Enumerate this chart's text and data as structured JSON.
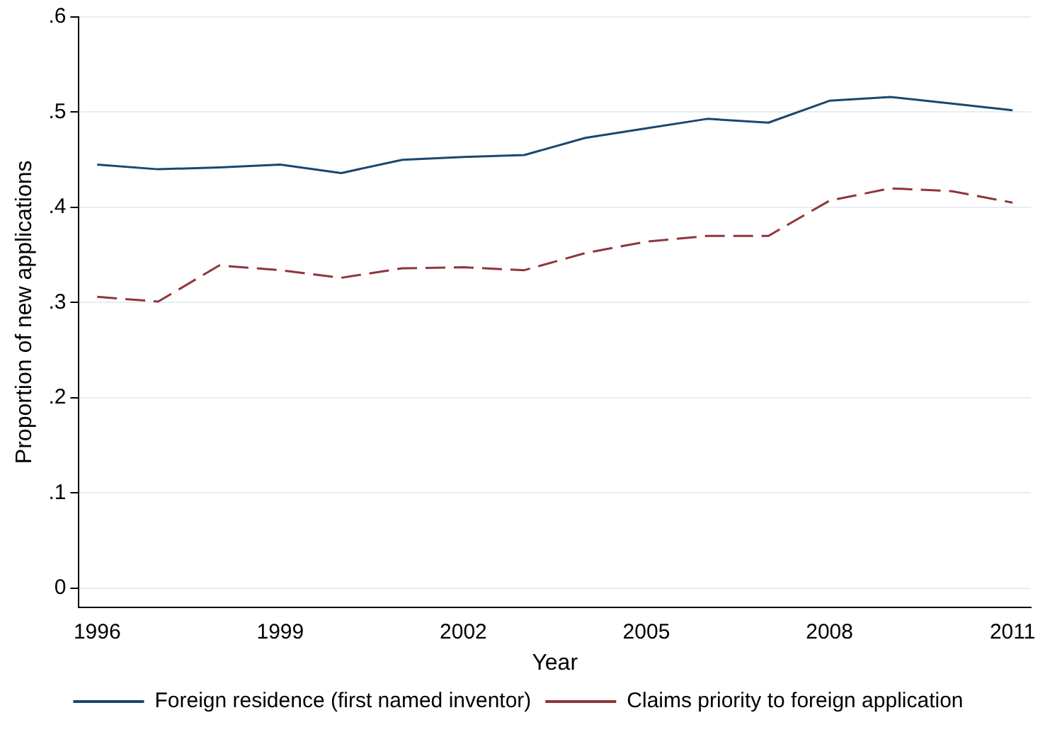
{
  "chart_data": {
    "type": "line",
    "xlabel": "Year",
    "ylabel": "Proportion of new applications",
    "x": [
      1996,
      1997,
      1998,
      1999,
      2000,
      2001,
      2002,
      2003,
      2004,
      2005,
      2006,
      2007,
      2008,
      2009,
      2010,
      2011
    ],
    "xlim": [
      1995.7,
      2011.3
    ],
    "xticks": [
      1996,
      1999,
      2002,
      2005,
      2008,
      2011
    ],
    "ylim": [
      -0.02,
      0.6
    ],
    "yticks": [
      {
        "value": 0,
        "label": "0"
      },
      {
        "value": 0.1,
        "label": ".1"
      },
      {
        "value": 0.2,
        "label": ".2"
      },
      {
        "value": 0.3,
        "label": ".3"
      },
      {
        "value": 0.4,
        "label": ".4"
      },
      {
        "value": 0.5,
        "label": ".5"
      },
      {
        "value": 0.6,
        "label": ".6"
      }
    ],
    "grid": "y",
    "legend": "bottom",
    "marker": "none",
    "series": [
      {
        "name": "Foreign residence (first named inventor)",
        "color": "#1a476f",
        "line_style": "solid",
        "values": [
          0.445,
          0.44,
          0.442,
          0.445,
          0.436,
          0.45,
          0.453,
          0.455,
          0.473,
          0.483,
          0.493,
          0.489,
          0.512,
          0.516,
          0.509,
          0.502
        ]
      },
      {
        "name": "Claims priority to foreign application",
        "color": "#90353b",
        "line_style": "dashed",
        "values": [
          0.306,
          0.301,
          0.339,
          0.334,
          0.326,
          0.336,
          0.337,
          0.334,
          0.352,
          0.364,
          0.37,
          0.37,
          0.407,
          0.42,
          0.417,
          0.405
        ]
      }
    ]
  }
}
